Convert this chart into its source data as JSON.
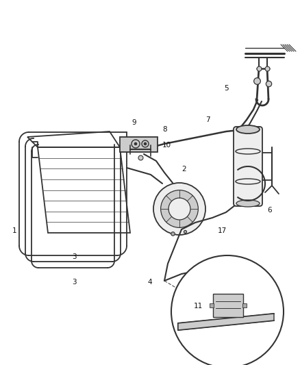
{
  "bg_color": "#ffffff",
  "line_color": "#333333",
  "fill_light": "#eeeeee",
  "fill_mid": "#cccccc",
  "fill_dark": "#aaaaaa",
  "label_color": "#111111",
  "figsize": [
    4.38,
    5.33
  ],
  "dpi": 100,
  "label_fs": 7.5
}
